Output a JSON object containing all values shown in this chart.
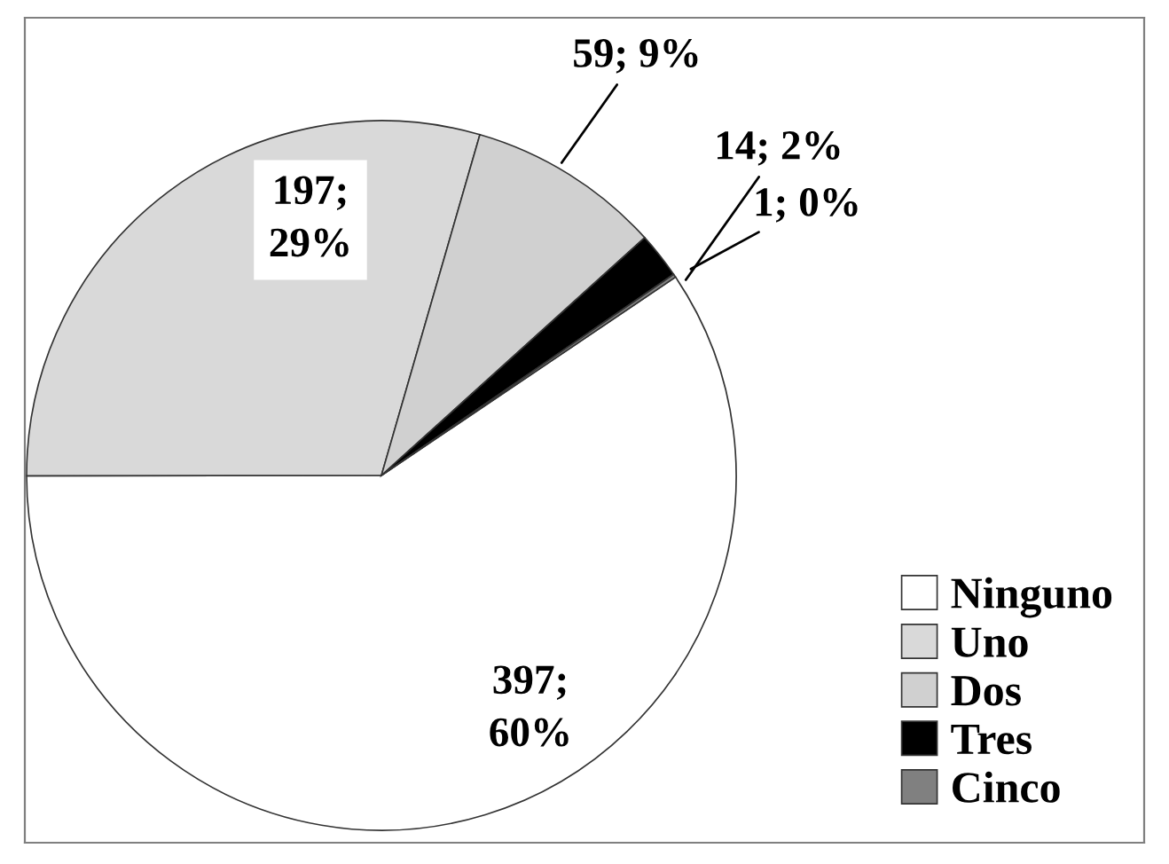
{
  "chart_data": {
    "type": "pie",
    "categories": [
      "Ninguno",
      "Uno",
      "Dos",
      "Tres",
      "Cinco"
    ],
    "values": [
      397,
      197,
      59,
      14,
      1
    ],
    "colors": [
      "#ffffff",
      "#d9d9d9",
      "#d0d0d0",
      "#000000",
      "#808080"
    ],
    "value_labels": [
      "397;\n60%",
      "197;\n29%",
      "59; 9%",
      "14; 2%",
      "1; 0%"
    ],
    "legend": "bottom right"
  }
}
